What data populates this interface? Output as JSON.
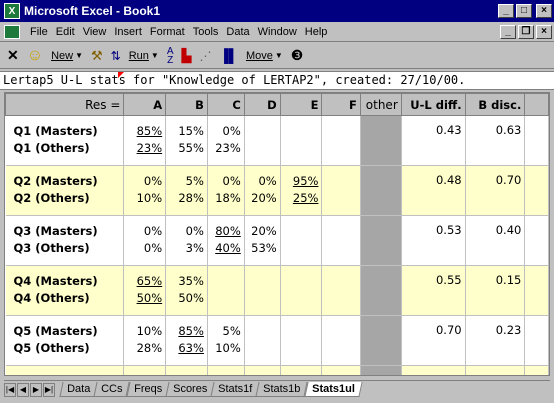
{
  "window": {
    "title": "Microsoft Excel - Book1",
    "min": "_",
    "max": "□",
    "close": "×"
  },
  "menu": {
    "items": [
      "File",
      "Edit",
      "View",
      "Insert",
      "Format",
      "Tools",
      "Data",
      "Window",
      "Help"
    ],
    "doc_min": "_",
    "doc_restore": "❐",
    "doc_close": "×"
  },
  "toolbar": {
    "cancel": "✕",
    "smiley": "☺",
    "new_label": "New",
    "run_label": "Run",
    "move_label": "Move",
    "info": "❸"
  },
  "formula_text": "Lertap5 U-L stats for \"Knowledge of LERTAP2\", created: 27/10/00.",
  "header": {
    "res": "Res =",
    "cols": [
      "A",
      "B",
      "C",
      "D",
      "E",
      "F"
    ],
    "other": "other",
    "uldiff": "U-L diff.",
    "bdisc": "B disc."
  },
  "rows": [
    {
      "m": "Q1 (Masters)",
      "o": "Q1 (Others)",
      "vals": [
        [
          "85%",
          "23%"
        ],
        [
          "15%",
          "55%"
        ],
        [
          "0%",
          "23%"
        ],
        [
          "",
          ""
        ],
        [
          "",
          ""
        ],
        [
          "",
          ""
        ]
      ],
      "keyed": 0,
      "uldiff": "0.43",
      "bdisc": "0.63"
    },
    {
      "m": "Q2 (Masters)",
      "o": "Q2 (Others)",
      "vals": [
        [
          "0%",
          "10%"
        ],
        [
          "5%",
          "28%"
        ],
        [
          "0%",
          "18%"
        ],
        [
          "0%",
          "20%"
        ],
        [
          "95%",
          "25%"
        ],
        [
          "",
          ""
        ]
      ],
      "keyed": 4,
      "uldiff": "0.48",
      "bdisc": "0.70"
    },
    {
      "m": "Q3 (Masters)",
      "o": "Q3 (Others)",
      "vals": [
        [
          "0%",
          "0%"
        ],
        [
          "0%",
          "3%"
        ],
        [
          "80%",
          "40%"
        ],
        [
          "20%",
          "53%"
        ],
        [
          "",
          ""
        ],
        [
          "",
          ""
        ]
      ],
      "keyed": 2,
      "uldiff": "0.53",
      "bdisc": "0.40"
    },
    {
      "m": "Q4 (Masters)",
      "o": "Q4 (Others)",
      "vals": [
        [
          "65%",
          "50%"
        ],
        [
          "35%",
          "50%"
        ],
        [
          "",
          ""
        ],
        [
          "",
          ""
        ],
        [
          "",
          ""
        ],
        [
          "",
          ""
        ]
      ],
      "keyed": 0,
      "uldiff": "0.55",
      "bdisc": "0.15"
    },
    {
      "m": "Q5 (Masters)",
      "o": "Q5 (Others)",
      "vals": [
        [
          "10%",
          "28%"
        ],
        [
          "85%",
          "63%"
        ],
        [
          "5%",
          "10%"
        ],
        [
          "",
          ""
        ],
        [
          "",
          ""
        ],
        [
          "",
          ""
        ]
      ],
      "keyed": 1,
      "uldiff": "0.70",
      "bdisc": "0.23"
    }
  ],
  "tabs": [
    "Data",
    "CCs",
    "Freqs",
    "Scores",
    "Stats1f",
    "Stats1b",
    "Stats1ul"
  ],
  "active_tab": "Stats1ul"
}
